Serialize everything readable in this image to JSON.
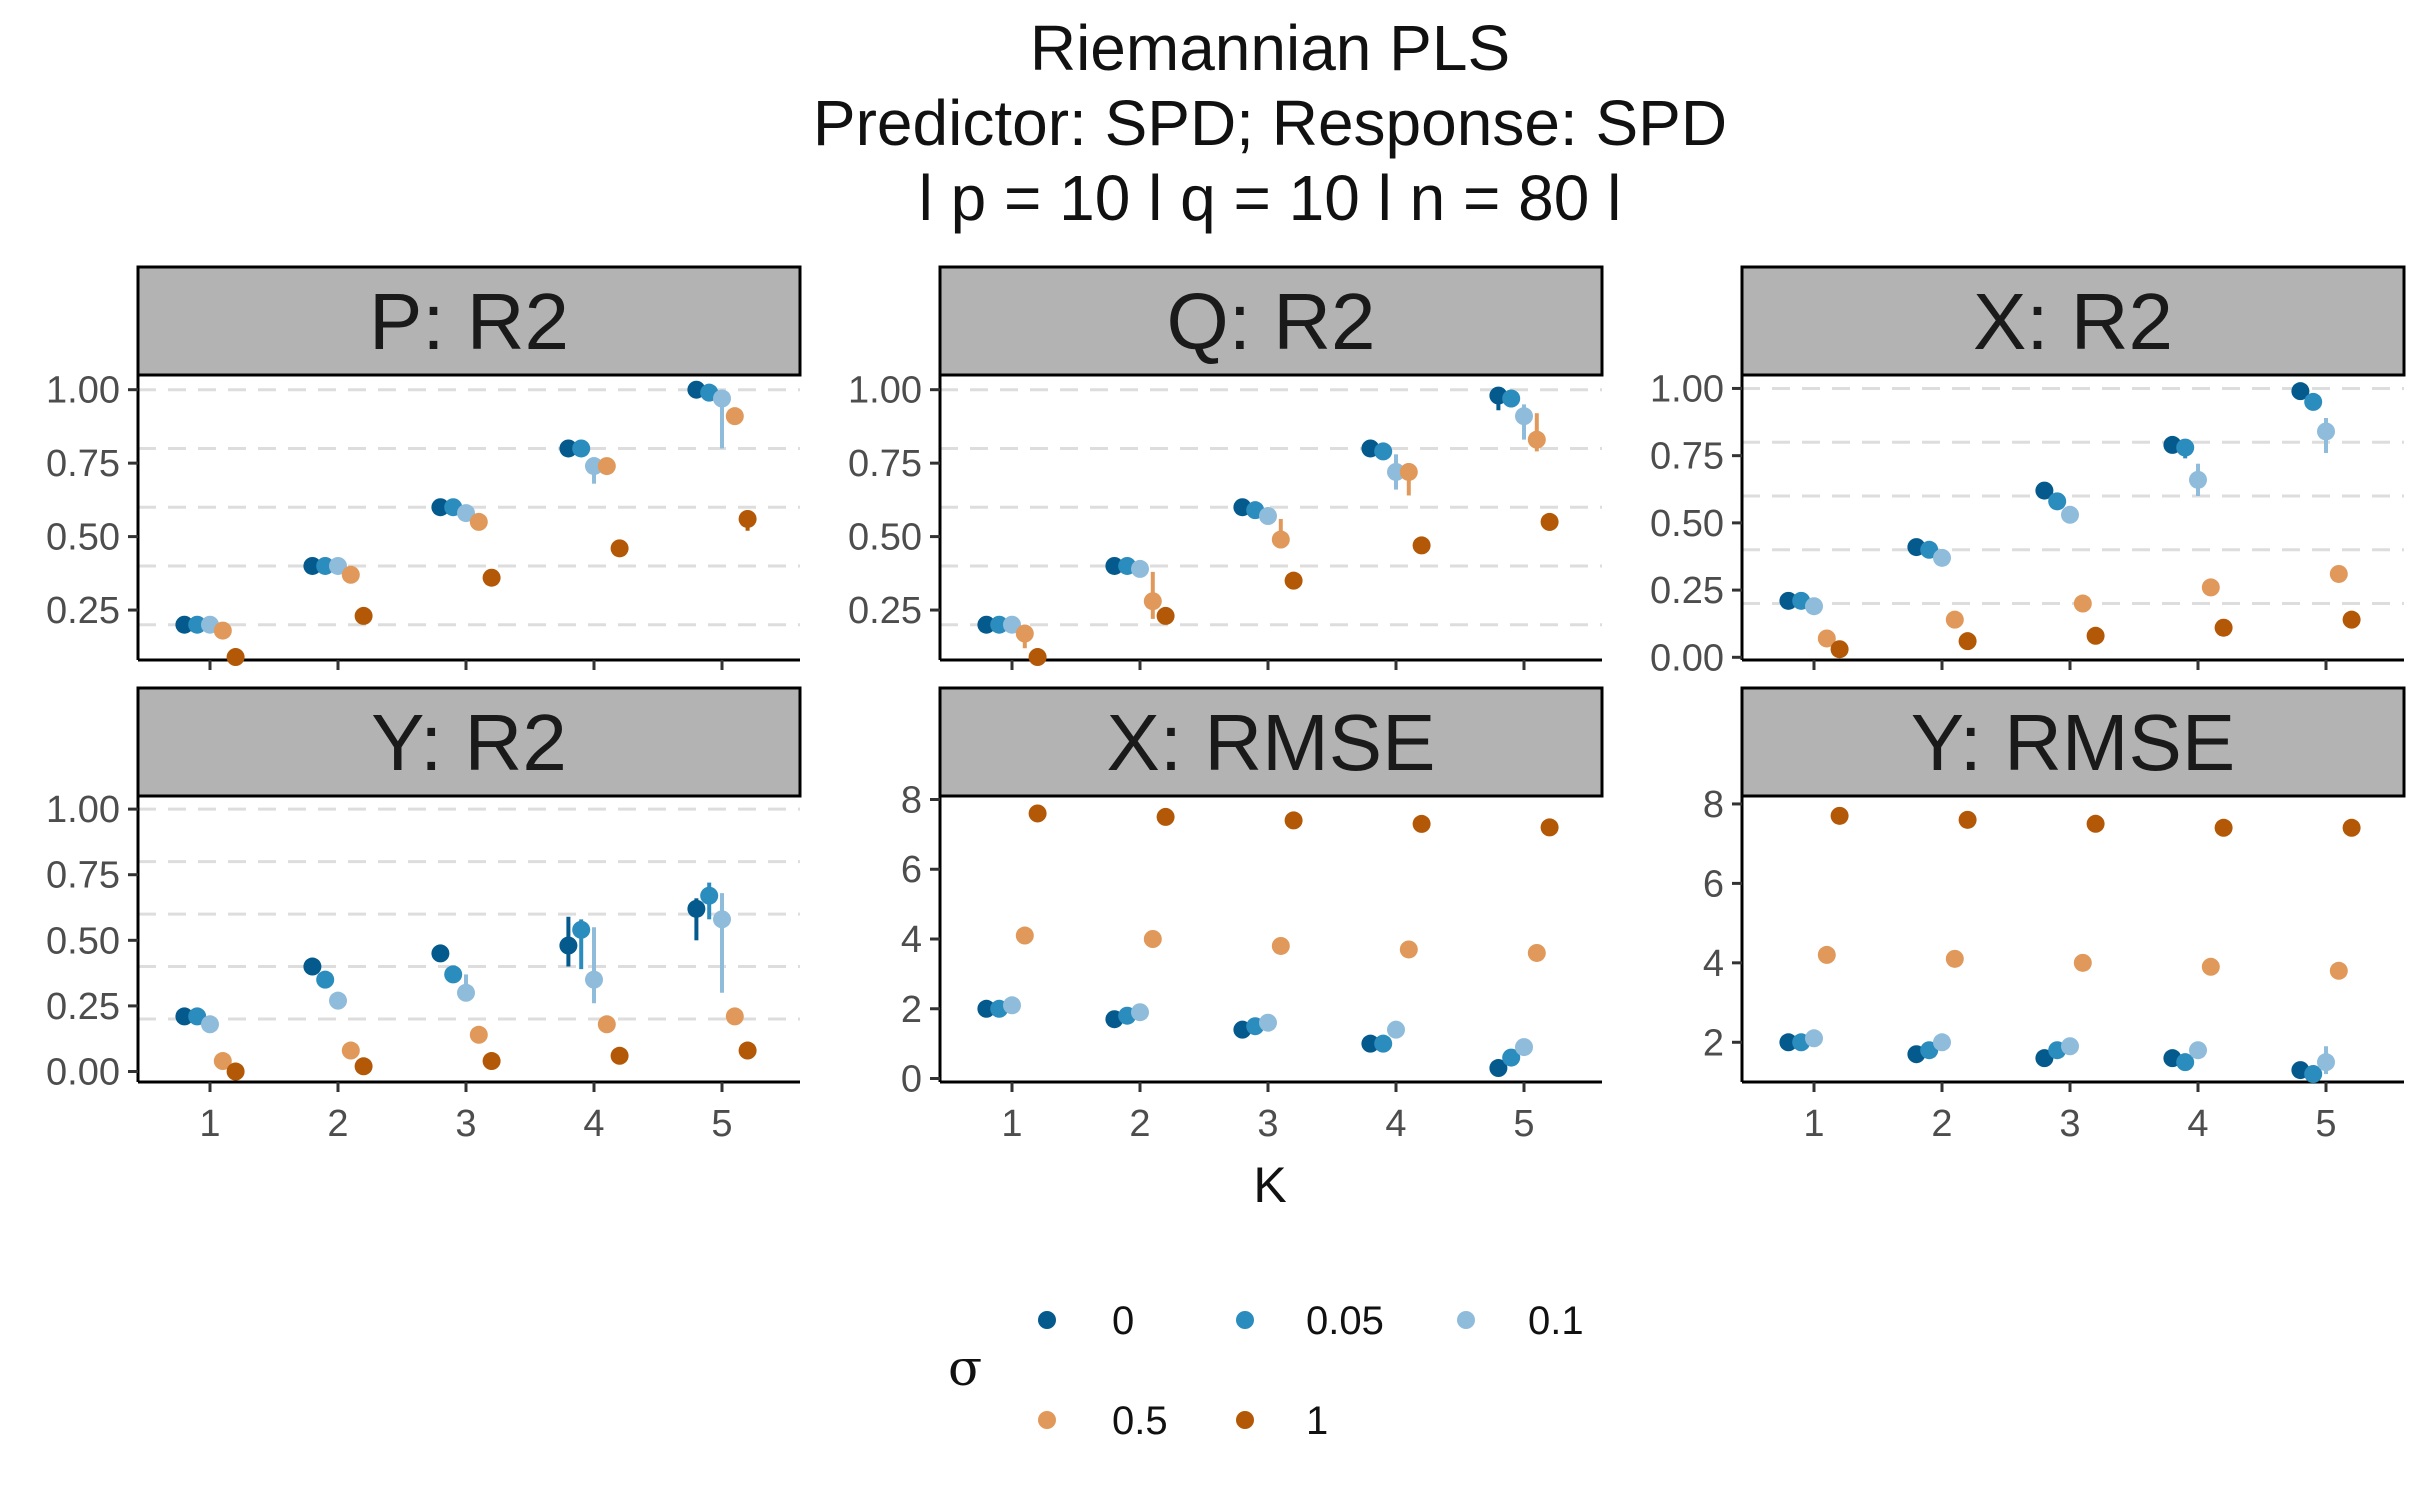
{
  "title_lines": [
    "Riemannian PLS",
    "Predictor: SPD; Response: SPD",
    "l p = 10 l q = 10 l n = 80 l"
  ],
  "chart_data": {
    "type": "scatter",
    "x_title": "K",
    "x_categories": [
      "1",
      "2",
      "3",
      "4",
      "5"
    ],
    "legend": {
      "title": "σ",
      "entries": [
        {
          "label": "0",
          "color": "#045a8d"
        },
        {
          "label": "0.05",
          "color": "#2b8cbe"
        },
        {
          "label": "0.1",
          "color": "#8fbcdb"
        },
        {
          "label": "0.5",
          "color": "#e0995a"
        },
        {
          "label": "1",
          "color": "#b35806"
        }
      ]
    },
    "offsets": [
      -0.2,
      -0.1,
      0,
      0.1,
      0.2
    ],
    "panels": [
      {
        "id": "p-r2",
        "title": "P: R2",
        "ylim": [
          0.08,
          1.05
        ],
        "y_ticks": [
          0.25,
          0.5,
          0.75,
          1.0
        ],
        "y_tick_labels": [
          "0.25",
          "0.50",
          "0.75",
          "1.00"
        ],
        "hlines": [
          0.2,
          0.4,
          0.6,
          0.8,
          1.0
        ],
        "series": [
          {
            "sigma": "0",
            "values": [
              0.2,
              0.4,
              0.6,
              0.8,
              1.0
            ],
            "lo": [
              0.2,
              0.4,
              0.6,
              0.8,
              1.0
            ],
            "hi": [
              0.2,
              0.4,
              0.6,
              0.8,
              1.0
            ]
          },
          {
            "sigma": "0.05",
            "values": [
              0.2,
              0.4,
              0.6,
              0.8,
              0.99
            ],
            "lo": [
              0.2,
              0.4,
              0.6,
              0.8,
              0.99
            ],
            "hi": [
              0.2,
              0.4,
              0.6,
              0.8,
              0.99
            ]
          },
          {
            "sigma": "0.1",
            "values": [
              0.2,
              0.4,
              0.58,
              0.74,
              0.97
            ],
            "lo": [
              0.2,
              0.4,
              0.57,
              0.68,
              0.8
            ],
            "hi": [
              0.2,
              0.4,
              0.59,
              0.77,
              0.99
            ]
          },
          {
            "sigma": "0.5",
            "values": [
              0.18,
              0.37,
              0.55,
              0.74,
              0.91
            ],
            "lo": [
              0.18,
              0.37,
              0.55,
              0.73,
              0.91
            ],
            "hi": [
              0.18,
              0.37,
              0.55,
              0.75,
              0.91
            ]
          },
          {
            "sigma": "1",
            "values": [
              0.09,
              0.23,
              0.36,
              0.46,
              0.56
            ],
            "lo": [
              0.09,
              0.23,
              0.36,
              0.46,
              0.52
            ],
            "hi": [
              0.09,
              0.23,
              0.36,
              0.46,
              0.57
            ]
          }
        ]
      },
      {
        "id": "q-r2",
        "title": "Q: R2",
        "ylim": [
          0.08,
          1.05
        ],
        "y_ticks": [
          0.25,
          0.5,
          0.75,
          1.0
        ],
        "y_tick_labels": [
          "0.25",
          "0.50",
          "0.75",
          "1.00"
        ],
        "hlines": [
          0.2,
          0.4,
          0.6,
          0.8,
          1.0
        ],
        "series": [
          {
            "sigma": "0",
            "values": [
              0.2,
              0.4,
              0.6,
              0.8,
              0.98
            ],
            "lo": [
              0.2,
              0.4,
              0.6,
              0.8,
              0.93
            ],
            "hi": [
              0.2,
              0.4,
              0.6,
              0.8,
              0.99
            ]
          },
          {
            "sigma": "0.05",
            "values": [
              0.2,
              0.4,
              0.59,
              0.79,
              0.97
            ],
            "lo": [
              0.2,
              0.4,
              0.59,
              0.79,
              0.94
            ],
            "hi": [
              0.2,
              0.4,
              0.59,
              0.79,
              0.98
            ]
          },
          {
            "sigma": "0.1",
            "values": [
              0.2,
              0.39,
              0.57,
              0.72,
              0.91
            ],
            "lo": [
              0.2,
              0.39,
              0.56,
              0.66,
              0.83
            ],
            "hi": [
              0.2,
              0.4,
              0.58,
              0.78,
              0.95
            ]
          },
          {
            "sigma": "0.5",
            "values": [
              0.17,
              0.28,
              0.49,
              0.72,
              0.83
            ],
            "lo": [
              0.12,
              0.22,
              0.46,
              0.64,
              0.79
            ],
            "hi": [
              0.19,
              0.38,
              0.56,
              0.75,
              0.92
            ]
          },
          {
            "sigma": "1",
            "values": [
              0.09,
              0.23,
              0.35,
              0.47,
              0.55
            ],
            "lo": [
              0.08,
              0.22,
              0.35,
              0.47,
              0.52
            ],
            "hi": [
              0.1,
              0.25,
              0.36,
              0.47,
              0.56
            ]
          }
        ]
      },
      {
        "id": "x-r2",
        "title": "X: R2",
        "ylim": [
          -0.01,
          1.05
        ],
        "y_ticks": [
          0.0,
          0.25,
          0.5,
          0.75,
          1.0
        ],
        "y_tick_labels": [
          "0.00",
          "0.25",
          "0.50",
          "0.75",
          "1.00"
        ],
        "hlines": [
          0.2,
          0.4,
          0.6,
          0.8,
          1.0
        ],
        "series": [
          {
            "sigma": "0",
            "values": [
              0.21,
              0.41,
              0.62,
              0.79,
              0.99
            ],
            "lo": [
              0.21,
              0.41,
              0.62,
              0.79,
              0.99
            ],
            "hi": [
              0.21,
              0.41,
              0.62,
              0.79,
              0.99
            ]
          },
          {
            "sigma": "0.05",
            "values": [
              0.21,
              0.4,
              0.58,
              0.78,
              0.95
            ],
            "lo": [
              0.21,
              0.4,
              0.58,
              0.74,
              0.95
            ],
            "hi": [
              0.21,
              0.4,
              0.58,
              0.79,
              0.95
            ]
          },
          {
            "sigma": "0.1",
            "values": [
              0.19,
              0.37,
              0.53,
              0.66,
              0.84
            ],
            "lo": [
              0.19,
              0.37,
              0.53,
              0.6,
              0.76
            ],
            "hi": [
              0.19,
              0.37,
              0.53,
              0.72,
              0.89
            ]
          },
          {
            "sigma": "0.5",
            "values": [
              0.07,
              0.14,
              0.2,
              0.26,
              0.31
            ],
            "lo": [
              0.07,
              0.14,
              0.2,
              0.26,
              0.31
            ],
            "hi": [
              0.07,
              0.14,
              0.2,
              0.26,
              0.31
            ]
          },
          {
            "sigma": "1",
            "values": [
              0.03,
              0.06,
              0.08,
              0.11,
              0.14
            ],
            "lo": [
              0.03,
              0.06,
              0.08,
              0.11,
              0.14
            ],
            "hi": [
              0.03,
              0.06,
              0.08,
              0.11,
              0.14
            ]
          }
        ]
      },
      {
        "id": "y-r2",
        "title": "Y: R2",
        "ylim": [
          -0.04,
          1.05
        ],
        "y_ticks": [
          0.0,
          0.25,
          0.5,
          0.75,
          1.0
        ],
        "y_tick_labels": [
          "0.00",
          "0.25",
          "0.50",
          "0.75",
          "1.00"
        ],
        "hlines": [
          0.2,
          0.4,
          0.6,
          0.8,
          1.0
        ],
        "series": [
          {
            "sigma": "0",
            "values": [
              0.21,
              0.4,
              0.45,
              0.48,
              0.62
            ],
            "lo": [
              0.21,
              0.4,
              0.45,
              0.4,
              0.5
            ],
            "hi": [
              0.21,
              0.4,
              0.45,
              0.59,
              0.66
            ]
          },
          {
            "sigma": "0.05",
            "values": [
              0.21,
              0.35,
              0.37,
              0.54,
              0.67
            ],
            "lo": [
              0.21,
              0.35,
              0.37,
              0.39,
              0.58
            ],
            "hi": [
              0.21,
              0.35,
              0.37,
              0.58,
              0.72
            ]
          },
          {
            "sigma": "0.1",
            "values": [
              0.18,
              0.27,
              0.3,
              0.35,
              0.58
            ],
            "lo": [
              0.18,
              0.27,
              0.27,
              0.26,
              0.3
            ],
            "hi": [
              0.18,
              0.27,
              0.37,
              0.55,
              0.68
            ]
          },
          {
            "sigma": "0.5",
            "values": [
              0.04,
              0.08,
              0.14,
              0.18,
              0.21
            ],
            "lo": [
              0.04,
              0.08,
              0.14,
              0.18,
              0.21
            ],
            "hi": [
              0.04,
              0.08,
              0.14,
              0.18,
              0.21
            ]
          },
          {
            "sigma": "1",
            "values": [
              0.0,
              0.02,
              0.04,
              0.06,
              0.08
            ],
            "lo": [
              0.0,
              0.02,
              0.04,
              0.06,
              0.08
            ],
            "hi": [
              0.0,
              0.02,
              0.04,
              0.06,
              0.08
            ]
          }
        ]
      },
      {
        "id": "x-rmse",
        "title": "X: RMSE",
        "ylim": [
          -0.1,
          8.1
        ],
        "y_ticks": [
          0,
          2,
          4,
          6,
          8
        ],
        "y_tick_labels": [
          "0",
          "2",
          "4",
          "6",
          "8"
        ],
        "hlines": [],
        "series": [
          {
            "sigma": "0",
            "values": [
              2.0,
              1.7,
              1.4,
              1.0,
              0.3
            ],
            "lo": [
              2.0,
              1.7,
              1.4,
              1.0,
              0.3
            ],
            "hi": [
              2.0,
              1.7,
              1.4,
              1.0,
              0.3
            ]
          },
          {
            "sigma": "0.05",
            "values": [
              2.0,
              1.8,
              1.5,
              1.0,
              0.6
            ],
            "lo": [
              2.0,
              1.8,
              1.5,
              1.0,
              0.6
            ],
            "hi": [
              2.0,
              1.8,
              1.5,
              1.0,
              0.6
            ]
          },
          {
            "sigma": "0.1",
            "values": [
              2.1,
              1.9,
              1.6,
              1.4,
              0.9
            ],
            "lo": [
              2.1,
              1.9,
              1.6,
              1.4,
              0.9
            ],
            "hi": [
              2.1,
              1.9,
              1.6,
              1.4,
              0.9
            ]
          },
          {
            "sigma": "0.5",
            "values": [
              4.1,
              4.0,
              3.8,
              3.7,
              3.6
            ],
            "lo": [
              4.1,
              4.0,
              3.8,
              3.7,
              3.6
            ],
            "hi": [
              4.1,
              4.0,
              3.8,
              3.7,
              3.6
            ]
          },
          {
            "sigma": "1",
            "values": [
              7.6,
              7.5,
              7.4,
              7.3,
              7.2
            ],
            "lo": [
              7.6,
              7.5,
              7.4,
              7.3,
              7.2
            ],
            "hi": [
              7.6,
              7.5,
              7.4,
              7.3,
              7.2
            ]
          }
        ]
      },
      {
        "id": "y-rmse",
        "title": "Y: RMSE",
        "ylim": [
          1.0,
          8.2
        ],
        "y_ticks": [
          2,
          4,
          6,
          8
        ],
        "y_tick_labels": [
          "2",
          "4",
          "6",
          "8"
        ],
        "hlines": [],
        "series": [
          {
            "sigma": "0",
            "values": [
              2.0,
              1.7,
              1.6,
              1.6,
              1.3
            ],
            "lo": [
              2.0,
              1.7,
              1.6,
              1.6,
              1.3
            ],
            "hi": [
              2.0,
              1.7,
              1.6,
              1.6,
              1.3
            ]
          },
          {
            "sigma": "0.05",
            "values": [
              2.0,
              1.8,
              1.8,
              1.5,
              1.2
            ],
            "lo": [
              2.0,
              1.8,
              1.8,
              1.5,
              1.2
            ],
            "hi": [
              2.0,
              1.8,
              1.8,
              1.5,
              1.2
            ]
          },
          {
            "sigma": "0.1",
            "values": [
              2.1,
              2.0,
              1.9,
              1.8,
              1.5
            ],
            "lo": [
              2.1,
              2.0,
              1.9,
              1.8,
              1.2
            ],
            "hi": [
              2.1,
              2.0,
              1.9,
              1.8,
              1.9
            ]
          },
          {
            "sigma": "0.5",
            "values": [
              4.2,
              4.1,
              4.0,
              3.9,
              3.8
            ],
            "lo": [
              4.2,
              4.1,
              4.0,
              3.9,
              3.8
            ],
            "hi": [
              4.2,
              4.1,
              4.0,
              3.9,
              3.8
            ]
          },
          {
            "sigma": "1",
            "values": [
              7.7,
              7.6,
              7.5,
              7.4,
              7.4
            ],
            "lo": [
              7.7,
              7.6,
              7.5,
              7.4,
              7.4
            ],
            "hi": [
              7.7,
              7.6,
              7.5,
              7.4,
              7.4
            ]
          }
        ]
      }
    ]
  }
}
